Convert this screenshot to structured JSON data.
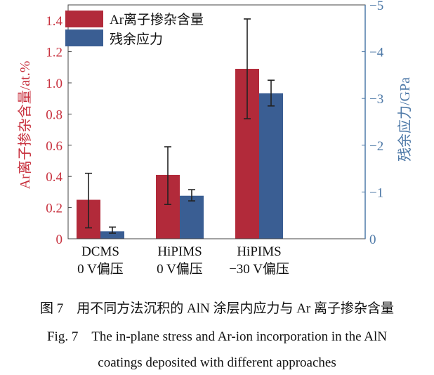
{
  "chart_data": {
    "type": "bar",
    "categories": [
      [
        "DCMS",
        "0 V偏压"
      ],
      [
        "HiPIMS",
        "0 V偏压"
      ],
      [
        "HiPIMS",
        "−30 V偏压"
      ]
    ],
    "series": [
      {
        "name": "Ar离子掺杂含量",
        "axis": "left",
        "color": "#b22a3a",
        "values": [
          0.25,
          0.41,
          1.09
        ],
        "err_low": [
          0.07,
          0.22,
          0.77
        ],
        "err_high": [
          0.42,
          0.59,
          1.41
        ]
      },
      {
        "name": "残余应力",
        "axis": "right",
        "color": "#3a5e93",
        "values": [
          -0.16,
          -0.92,
          -3.11
        ],
        "err_low": [
          -0.12,
          -0.81,
          -2.84
        ],
        "err_high": [
          -0.25,
          -1.05,
          -3.39
        ]
      }
    ],
    "ylabel_left": "Ar离子掺杂含量/at.%",
    "ylabel_right": "残余应力/GPa",
    "ylim_left": [
      0,
      1.5
    ],
    "ylim_right": [
      0,
      -5
    ],
    "yticks_left": [
      "0",
      "0.2",
      "0.4",
      "0.6",
      "0.8",
      "1.0",
      "1.2",
      "1.4"
    ],
    "yticks_left_values": [
      0,
      0.2,
      0.4,
      0.6,
      0.8,
      1.0,
      1.2,
      1.4
    ],
    "yticks_right": [
      "0",
      "−1",
      "−2",
      "−3",
      "−4",
      "−5"
    ],
    "yticks_right_values": [
      0,
      -1,
      -2,
      -3,
      -4,
      -5
    ],
    "left_axis_color": "#c8323f",
    "right_axis_color": "#4f7aa8",
    "grid": false,
    "legend": "top-left"
  },
  "caption": {
    "cn": "图 7　用不同方法沉积的 AlN 涂层内应力与 Ar 离子掺杂含量",
    "en_line1": "Fig. 7　The in-plane stress and Ar-ion incorporation in the AlN",
    "en_line2": "coatings deposited with different approaches"
  }
}
